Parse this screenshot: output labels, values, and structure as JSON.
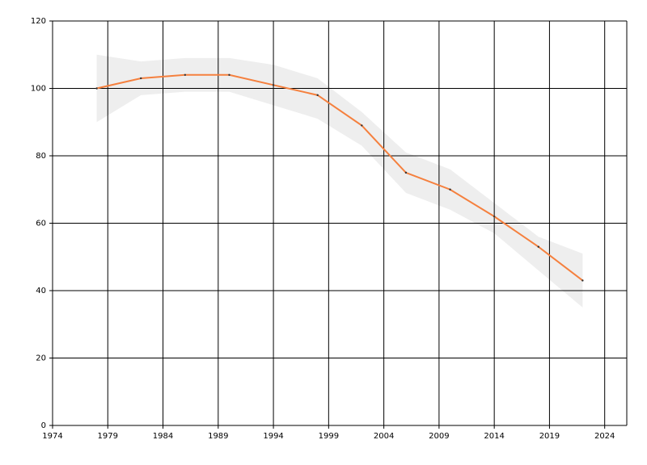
{
  "chart_data": {
    "type": "line",
    "x": [
      1978,
      1982,
      1986,
      1990,
      1994,
      1998,
      2002,
      2006,
      2010,
      2014,
      2018,
      2022
    ],
    "series": [
      {
        "color": "#f5803e",
        "values": [
          100,
          103,
          104,
          104,
          101,
          98,
          89,
          75,
          70,
          62,
          53,
          43
        ]
      }
    ],
    "band": {
      "color": "#eeeeee",
      "upper": [
        110,
        108,
        109,
        109,
        107,
        103,
        93,
        81,
        76,
        66,
        56,
        51
      ],
      "lower": [
        90,
        98,
        99,
        99,
        95,
        91,
        83,
        69,
        64,
        57,
        46,
        35
      ]
    },
    "xlim": [
      1974,
      2026
    ],
    "xticks": [
      1974,
      1979,
      1984,
      1989,
      1994,
      1999,
      2004,
      2009,
      2014,
      2019,
      2024
    ],
    "ylim": [
      0,
      120
    ],
    "yticks": [
      0,
      20,
      40,
      60,
      80,
      100,
      120
    ],
    "grid": true
  }
}
